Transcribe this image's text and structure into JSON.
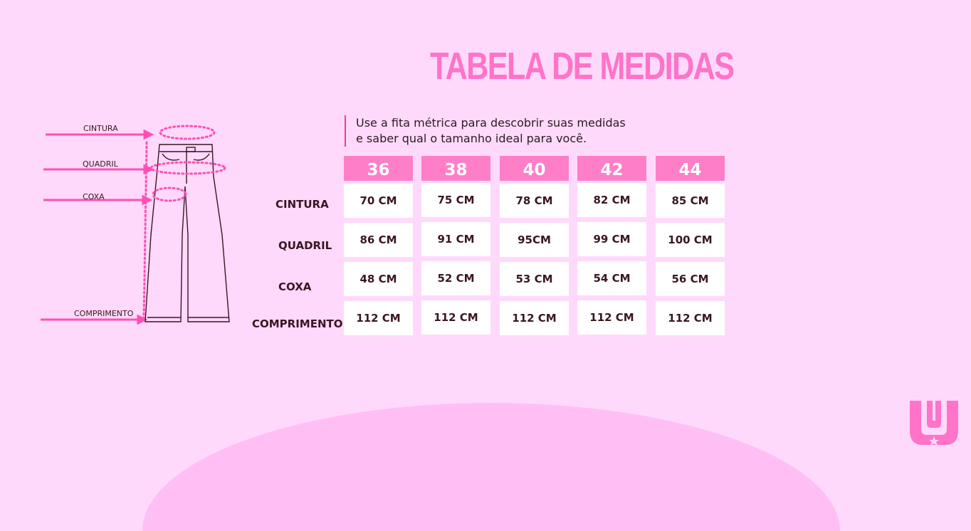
{
  "header": {
    "title": "TABELA DE MEDIDAS",
    "subtitle_line1": "Use a fita métrica para descobrir suas medidas",
    "subtitle_line2": "e saber qual o tamanho ideal para você."
  },
  "diagram": {
    "labels": [
      "CINTURA",
      "QUADRIL",
      "COXA",
      "COMPRIMENTO"
    ],
    "icon": "flare-jeans-icon"
  },
  "table": {
    "sizes": [
      "36",
      "38",
      "40",
      "42",
      "44"
    ],
    "rows": [
      {
        "label": "CINTURA",
        "values": [
          "70 CM",
          "75 CM",
          "78 CM",
          "82 CM",
          "85 CM"
        ]
      },
      {
        "label": "QUADRIL",
        "values": [
          "86 CM",
          "91 CM",
          "95CM",
          "99 CM",
          "100 CM"
        ]
      },
      {
        "label": "COXA",
        "values": [
          "48 CM",
          "52 CM",
          "53 CM",
          "54 CM",
          "56 CM"
        ]
      },
      {
        "label": "COMPRIMENTO",
        "values": [
          "112 CM",
          "112 CM",
          "112 CM",
          "112 CM",
          "112 CM"
        ]
      }
    ]
  },
  "colors": {
    "background": "#ffd9fb",
    "accent": "#ff7ec8",
    "title": "#ff73c8",
    "text": "#3a1620"
  },
  "logo": {
    "icon": "brand-logo-icon"
  }
}
